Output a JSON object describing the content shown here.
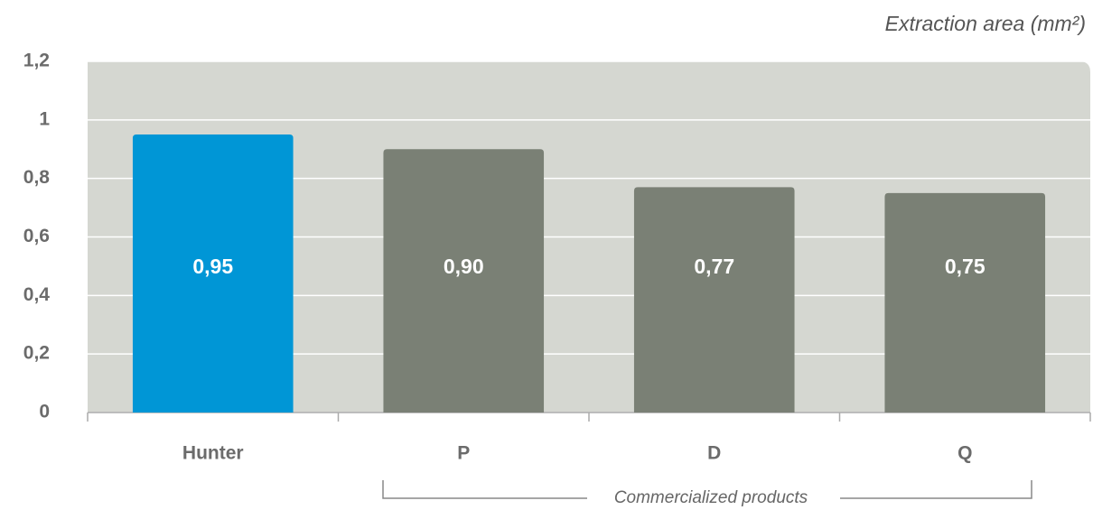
{
  "chart_data": {
    "type": "bar",
    "title": "Extraction area (mm²)",
    "categories": [
      "Hunter",
      "P",
      "D",
      "Q"
    ],
    "values": [
      0.95,
      0.9,
      0.77,
      0.75
    ],
    "value_labels": [
      "0,95",
      "0,90",
      "0,77",
      "0,75"
    ],
    "colors": [
      "#0096d6",
      "#7a8075",
      "#7a8075",
      "#7a8075"
    ],
    "ylim": [
      0,
      1.2
    ],
    "yticks": [
      0,
      {
        "value": 0.2,
        "label": "0,2"
      },
      {
        "value": 0.4,
        "label": "0,4"
      },
      {
        "value": 0.6,
        "label": "0,6"
      },
      {
        "value": 0.8,
        "label": "0,8"
      },
      1,
      {
        "value": 1.2,
        "label": "1,2"
      }
    ],
    "grid": true,
    "annotation": "Commercialized products"
  }
}
